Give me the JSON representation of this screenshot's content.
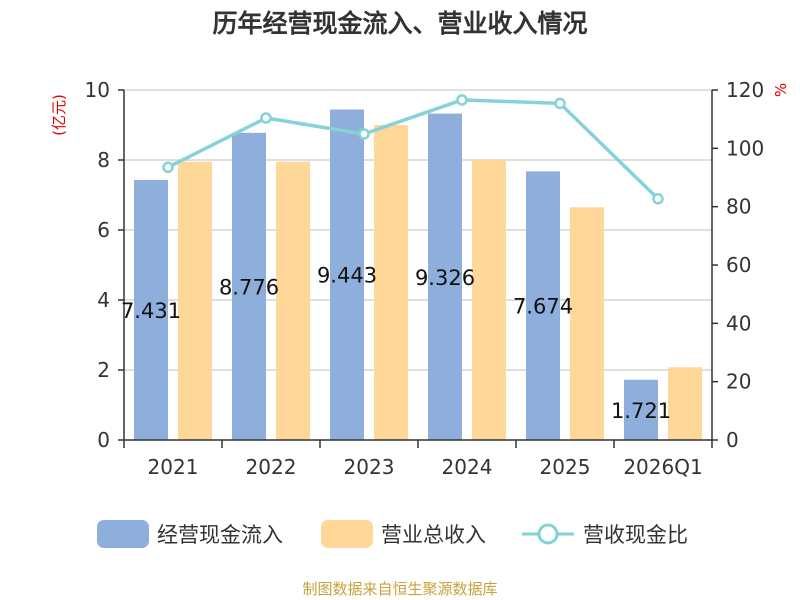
{
  "chart_data": {
    "type": "bar",
    "title": "历年经营现金流入、营业收入情况",
    "categories": [
      "2021",
      "2022",
      "2023",
      "2024",
      "2025",
      "2026Q1"
    ],
    "series": [
      {
        "name": "经营现金流入",
        "axis": "left",
        "kind": "bar",
        "color": "#8eaedb",
        "values": [
          7.431,
          8.776,
          9.443,
          9.326,
          7.674,
          1.721
        ],
        "labels": [
          "7.431",
          "8.776",
          "9.443",
          "9.326",
          "7.674",
          "1.721"
        ]
      },
      {
        "name": "营业总收入",
        "axis": "left",
        "kind": "bar",
        "color": "#ffd899",
        "values": [
          7.95,
          7.95,
          9.0,
          8.0,
          6.65,
          2.08
        ]
      },
      {
        "name": "营收现金比",
        "axis": "right",
        "kind": "line",
        "color": "#85d3d6",
        "values": [
          93.5,
          110.4,
          104.9,
          116.6,
          115.4,
          82.7
        ]
      }
    ],
    "left_axis": {
      "label": "(亿元)",
      "ylim": [
        0,
        10
      ],
      "ticks": [
        "0",
        "2",
        "4",
        "6",
        "8",
        "10"
      ]
    },
    "right_axis": {
      "label": "%",
      "ylim": [
        0,
        120
      ],
      "ticks": [
        "0",
        "20",
        "40",
        "60",
        "80",
        "100",
        "120"
      ]
    },
    "legend_position": "bottom",
    "grid": true
  },
  "source": "制图数据来自恒生聚源数据库"
}
